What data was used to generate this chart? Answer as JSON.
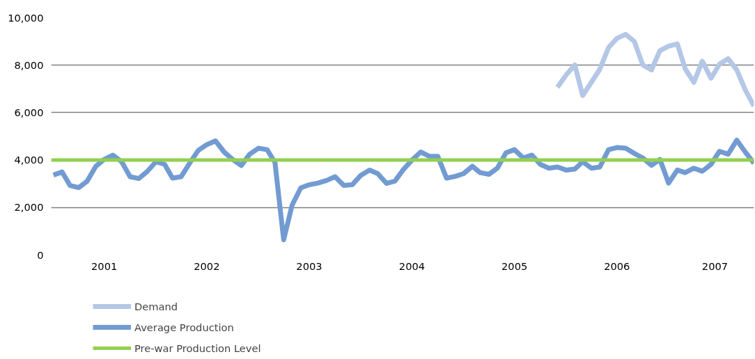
{
  "chart_data": {
    "type": "line",
    "x": [
      "2001-01",
      "2001-02",
      "2001-03",
      "2001-04",
      "2001-05",
      "2001-06",
      "2001-07",
      "2001-08",
      "2001-09",
      "2001-10",
      "2001-11",
      "2001-12",
      "2002-01",
      "2002-02",
      "2002-03",
      "2002-04",
      "2002-05",
      "2002-06",
      "2002-07",
      "2002-08",
      "2002-09",
      "2002-10",
      "2002-11",
      "2002-12",
      "2003-01",
      "2003-02",
      "2003-03",
      "2003-04",
      "2003-05",
      "2003-06",
      "2003-07",
      "2003-08",
      "2003-09",
      "2003-10",
      "2003-11",
      "2003-12",
      "2004-01",
      "2004-02",
      "2004-03",
      "2004-04",
      "2004-05",
      "2004-06",
      "2004-07",
      "2004-08",
      "2004-09",
      "2004-10",
      "2004-11",
      "2004-12",
      "2005-01",
      "2005-02",
      "2005-03",
      "2005-04",
      "2005-05",
      "2005-06",
      "2005-07",
      "2005-08",
      "2005-09",
      "2005-10",
      "2005-11",
      "2005-12",
      "2006-01",
      "2006-02",
      "2006-03",
      "2006-04",
      "2006-05",
      "2006-06",
      "2006-07",
      "2006-08",
      "2006-09",
      "2006-10",
      "2006-11",
      "2006-12",
      "2007-01",
      "2007-02",
      "2007-03",
      "2007-04",
      "2007-05",
      "2007-06",
      "2007-07",
      "2007-08",
      "2007-09",
      "2007-10",
      "2007-11"
    ],
    "series": [
      {
        "name": "Demand",
        "color": "#b4c7e7",
        "x": [
          "2005-12",
          "2006-01",
          "2006-02",
          "2006-03",
          "2006-04",
          "2006-05",
          "2006-06",
          "2006-07",
          "2006-08",
          "2006-09",
          "2006-10",
          "2006-11",
          "2006-12",
          "2007-01",
          "2007-02",
          "2007-03",
          "2007-04",
          "2007-05",
          "2007-06",
          "2007-07",
          "2007-08",
          "2007-09",
          "2007-10",
          "2007-11"
        ],
        "values": [
          7070,
          7590,
          8010,
          6720,
          7280,
          7830,
          8740,
          9130,
          9300,
          9000,
          8010,
          7800,
          8610,
          8800,
          8900,
          7850,
          7280,
          8170,
          7450,
          8040,
          8270,
          7800,
          6960,
          6280
        ]
      },
      {
        "name": "Average Production",
        "color": "#729bd2",
        "values": [
          3370,
          3500,
          2930,
          2840,
          3110,
          3740,
          4030,
          4210,
          3930,
          3300,
          3220,
          3520,
          3930,
          3820,
          3240,
          3300,
          3870,
          4410,
          4650,
          4810,
          4340,
          4030,
          3770,
          4250,
          4500,
          4440,
          3900,
          640,
          2100,
          2830,
          2960,
          3030,
          3140,
          3300,
          2930,
          2960,
          3360,
          3580,
          3430,
          3020,
          3110,
          3610,
          4000,
          4340,
          4160,
          4160,
          3240,
          3310,
          3430,
          3740,
          3470,
          3400,
          3660,
          4310,
          4440,
          4090,
          4210,
          3820,
          3660,
          3710,
          3580,
          3620,
          3930,
          3660,
          3710,
          4440,
          4530,
          4500,
          4280,
          4090,
          3780,
          4030,
          3030,
          3580,
          3470,
          3660,
          3530,
          3820,
          4370,
          4250,
          4840,
          4340,
          3870
        ]
      }
    ],
    "ref_lines": [
      {
        "axis": "y",
        "value": 4000,
        "label": "Pre-war Production Level",
        "color": "#92d050"
      }
    ],
    "xlim": [
      "2000-12-24",
      "2007-11-01"
    ],
    "xticks": [
      {
        "value": "2001-07-01",
        "label": "2001"
      },
      {
        "value": "2002-07-01",
        "label": "2002"
      },
      {
        "value": "2003-07-01",
        "label": "2003"
      },
      {
        "value": "2004-07-01",
        "label": "2004"
      },
      {
        "value": "2005-07-01",
        "label": "2005"
      },
      {
        "value": "2006-07-01",
        "label": "2006"
      },
      {
        "value": "2007-06-15",
        "label": "2007"
      }
    ],
    "ylim": [
      0,
      10000
    ],
    "yticks": [
      {
        "value": 0,
        "label": "0"
      },
      {
        "value": 2000,
        "label": "2,000"
      },
      {
        "value": 4000,
        "label": "4,000"
      },
      {
        "value": 6000,
        "label": "6,000"
      },
      {
        "value": 8000,
        "label": "8,000"
      },
      {
        "value": 10000,
        "label": "10,000"
      }
    ],
    "grid": "y",
    "legend": "bottom left",
    "line_style": "solid",
    "marker": "none"
  }
}
